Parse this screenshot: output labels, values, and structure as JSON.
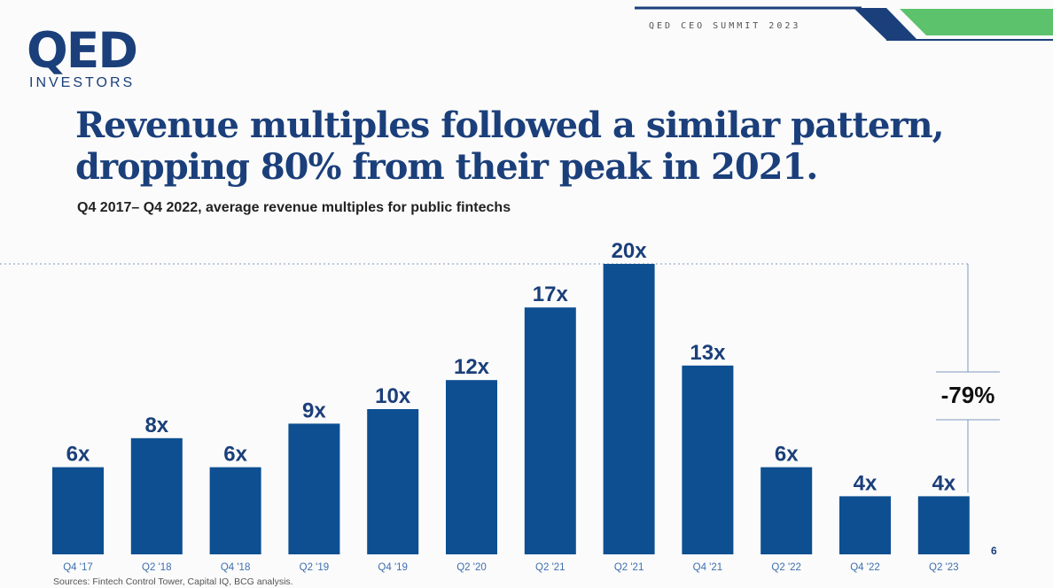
{
  "header": {
    "logo_main": "QED",
    "logo_sub": "INVESTORS",
    "event": "QED CEO SUMMIT 2023"
  },
  "title": "Revenue multiples followed a similar pattern, dropping 80% from their peak in 2021.",
  "subtitle": "Q4 2017– Q4 2022, average revenue multiples for public fintechs",
  "source": "Sources: Fintech Control Tower, Capital IQ, BCG analysis.",
  "page_number": "6",
  "colors": {
    "bar": "#0d4f91",
    "label": "#1b3f7a",
    "axis_label": "#3d6fb0",
    "accent_green": "#5cc36c"
  },
  "chart_data": {
    "type": "bar",
    "categories": [
      "Q4 '17",
      "Q2 '18",
      "Q4 '18",
      "Q2 '19",
      "Q4 '19",
      "Q2 '20",
      "Q2 '21",
      "Q2 '21",
      "Q4 '21",
      "Q2 '22",
      "Q4 '22",
      "Q2 '23"
    ],
    "values": [
      6,
      8,
      6,
      9,
      10,
      12,
      17,
      20,
      13,
      6,
      4,
      4
    ],
    "data_labels": [
      "6x",
      "8x",
      "6x",
      "9x",
      "10x",
      "12x",
      "17x",
      "20x",
      "13x",
      "6x",
      "4x",
      "4x"
    ],
    "peak_line": 20,
    "annotation": "-79%",
    "title": "Q4 2017– Q4 2022, average revenue multiples for public fintechs",
    "ylim": [
      0,
      20
    ],
    "grid": false
  }
}
